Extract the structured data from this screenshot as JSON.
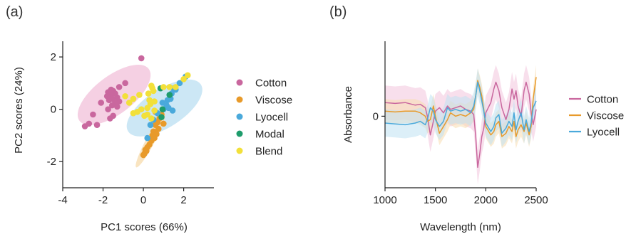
{
  "panels": {
    "a": "(a)",
    "b": "(b)"
  },
  "chart_data": [
    {
      "type": "scatter",
      "xlabel": "PC1 scores (66%)",
      "ylabel": "PC2 scores (24%)",
      "xlim": [
        -4,
        3.5
      ],
      "ylim": [
        -3,
        2.6
      ],
      "xticks": [
        "-4",
        "-2",
        "0",
        "2"
      ],
      "yticks": [
        "-2",
        "0",
        "2"
      ],
      "legend_position": "right",
      "series": [
        {
          "name": "Cotton",
          "color": "#c9679e",
          "points": [
            [
              -0.1,
              1.95
            ],
            [
              -0.9,
              1.0
            ],
            [
              -1.2,
              0.85
            ],
            [
              -1.6,
              0.75
            ],
            [
              -1.5,
              0.7
            ],
            [
              -1.75,
              0.65
            ],
            [
              -1.4,
              0.6
            ],
            [
              -1.6,
              0.55
            ],
            [
              -1.8,
              0.5
            ],
            [
              -1.3,
              0.45
            ],
            [
              -1.55,
              0.4
            ],
            [
              -1.7,
              0.35
            ],
            [
              -1.2,
              0.3
            ],
            [
              -1.4,
              0.25
            ],
            [
              -2.1,
              0.25
            ],
            [
              -1.55,
              0.15
            ],
            [
              -1.3,
              0.1
            ],
            [
              -1.75,
              0.0
            ],
            [
              -2.5,
              -0.2
            ],
            [
              -1.5,
              -0.25
            ],
            [
              -1.65,
              -0.35
            ],
            [
              -2.7,
              -0.55
            ],
            [
              -2.3,
              -0.6
            ],
            [
              -2.9,
              -0.65
            ]
          ]
        },
        {
          "name": "Viscose",
          "color": "#e89a2a",
          "points": [
            [
              0.6,
              -0.1
            ],
            [
              0.9,
              -0.2
            ],
            [
              0.8,
              -0.35
            ],
            [
              0.7,
              -0.5
            ],
            [
              1.0,
              -0.55
            ],
            [
              0.6,
              -0.6
            ],
            [
              0.75,
              -0.75
            ],
            [
              0.5,
              -0.85
            ],
            [
              0.65,
              -0.95
            ],
            [
              0.45,
              -1.0
            ],
            [
              0.55,
              -1.1
            ],
            [
              0.4,
              -1.2
            ],
            [
              0.3,
              -1.35
            ],
            [
              0.2,
              -1.45
            ],
            [
              0.1,
              -1.55
            ],
            [
              0.15,
              -1.6
            ],
            [
              0.05,
              -1.7
            ],
            [
              0.0,
              -1.75
            ]
          ]
        },
        {
          "name": "Lyocell",
          "color": "#4aa9db",
          "points": [
            [
              2.1,
              1.25
            ],
            [
              1.8,
              1.0
            ],
            [
              1.5,
              0.8
            ],
            [
              1.6,
              0.75
            ],
            [
              1.4,
              0.6
            ],
            [
              1.3,
              0.55
            ],
            [
              1.35,
              0.4
            ],
            [
              1.2,
              0.35
            ],
            [
              0.95,
              0.25
            ],
            [
              1.15,
              0.15
            ],
            [
              1.25,
              0.05
            ],
            [
              1.45,
              -0.05
            ],
            [
              1.0,
              0.0
            ],
            [
              0.7,
              -0.15
            ],
            [
              0.5,
              -0.4
            ],
            [
              0.35,
              -0.6
            ],
            [
              0.2,
              -1.1
            ]
          ]
        },
        {
          "name": "Modal",
          "color": "#1e9c6c",
          "points": [
            [
              0.85,
              0.8
            ],
            [
              1.3,
              0.55
            ],
            [
              0.95,
              0.0
            ],
            [
              0.9,
              -0.3
            ]
          ]
        },
        {
          "name": "Blend",
          "color": "#f2e03a",
          "points": [
            [
              2.2,
              1.3
            ],
            [
              2.0,
              1.15
            ],
            [
              1.6,
              0.85
            ],
            [
              1.3,
              0.85
            ],
            [
              1.0,
              0.85
            ],
            [
              0.4,
              0.9
            ],
            [
              0.45,
              0.8
            ],
            [
              0.5,
              0.7
            ],
            [
              0.25,
              0.6
            ],
            [
              -0.2,
              0.55
            ],
            [
              -0.9,
              0.5
            ],
            [
              -0.5,
              0.4
            ],
            [
              0.3,
              0.35
            ],
            [
              0.55,
              0.3
            ],
            [
              -0.7,
              0.25
            ],
            [
              0.35,
              0.2
            ],
            [
              0.2,
              0.05
            ],
            [
              -0.1,
              0.0
            ],
            [
              0.55,
              -0.05
            ],
            [
              -0.3,
              -0.1
            ],
            [
              -0.5,
              -0.15
            ],
            [
              0.2,
              -0.2
            ],
            [
              0.05,
              -0.25
            ],
            [
              0.4,
              -0.35
            ]
          ]
        }
      ],
      "ellipses": [
        {
          "series": "Cotton",
          "color": "#f2c4dc",
          "center": [
            -1.45,
            0.55
          ],
          "radii": [
            0.95,
            2.15
          ],
          "angle": -53
        },
        {
          "series": "Lyocell",
          "color": "#bfe1f3",
          "center": [
            1.05,
            0.05
          ],
          "radii": [
            0.95,
            2.15
          ],
          "angle": -57
        },
        {
          "series": "Viscose",
          "color": "#f8ddb0",
          "center": [
            0.35,
            -1.2
          ],
          "radii": [
            0.22,
            1.5
          ],
          "angle": -28
        }
      ]
    },
    {
      "type": "line",
      "xlabel": "Wavelength (nm)",
      "ylabel": "Absorbance",
      "xlim": [
        1000,
        2500
      ],
      "ylim": [
        -4.2,
        4.4
      ],
      "xticks": [
        "1000",
        "1500",
        "2000",
        "2500"
      ],
      "yticks": [
        "0"
      ],
      "legend_position": "right",
      "series": [
        {
          "name": "Cotton",
          "color": "#c9679e",
          "band_color": "#f2c4dc",
          "band": 1.0,
          "x": [
            1000,
            1100,
            1200,
            1300,
            1350,
            1400,
            1420,
            1450,
            1480,
            1500,
            1540,
            1580,
            1620,
            1650,
            1700,
            1750,
            1800,
            1850,
            1880,
            1900,
            1920,
            1940,
            1960,
            1980,
            2000,
            2050,
            2080,
            2100,
            2130,
            2160,
            2200,
            2230,
            2260,
            2280,
            2300,
            2320,
            2350,
            2380,
            2400,
            2430,
            2450,
            2470,
            2500
          ],
          "y": [
            0.8,
            0.75,
            0.8,
            0.65,
            0.7,
            0.5,
            0.0,
            -1.1,
            -0.3,
            0.3,
            0.5,
            0.2,
            0.6,
            0.4,
            0.5,
            0.6,
            0.4,
            0.3,
            0.1,
            -1.2,
            -3.0,
            -2.2,
            -1.2,
            -0.7,
            0.2,
            0.8,
            1.6,
            2.0,
            1.5,
            0.5,
            -0.2,
            0.4,
            1.6,
            1.0,
            1.5,
            0.6,
            0.0,
            1.5,
            2.0,
            1.3,
            0.2,
            -0.5,
            0.4
          ]
        },
        {
          "name": "Viscose",
          "color": "#e89a2a",
          "band_color": "#f8ddb0",
          "band": 0.7,
          "x": [
            1000,
            1100,
            1200,
            1300,
            1350,
            1400,
            1420,
            1450,
            1480,
            1500,
            1540,
            1580,
            1620,
            1650,
            1700,
            1750,
            1800,
            1850,
            1880,
            1900,
            1920,
            1940,
            1960,
            1980,
            2000,
            2050,
            2080,
            2100,
            2130,
            2160,
            2200,
            2230,
            2260,
            2280,
            2300,
            2320,
            2350,
            2380,
            2400,
            2430,
            2450,
            2470,
            2500
          ],
          "y": [
            0.3,
            0.25,
            0.3,
            0.3,
            0.2,
            0.0,
            -0.3,
            -0.2,
            0.6,
            0.0,
            -1.0,
            -0.6,
            -0.2,
            0.2,
            0.0,
            0.1,
            0.0,
            0.2,
            0.4,
            1.2,
            2.1,
            1.7,
            1.2,
            0.4,
            -0.6,
            -1.1,
            -0.9,
            -0.5,
            -0.3,
            -1.2,
            -1.0,
            -0.6,
            -0.9,
            -0.3,
            -1.2,
            -0.8,
            -0.5,
            -0.9,
            -0.4,
            -1.1,
            -0.6,
            1.0,
            2.3
          ]
        },
        {
          "name": "Lyocell",
          "color": "#4aa9db",
          "band_color": "#bfe1f3",
          "band": 0.8,
          "x": [
            1000,
            1100,
            1200,
            1300,
            1350,
            1400,
            1420,
            1450,
            1480,
            1500,
            1540,
            1580,
            1620,
            1650,
            1700,
            1750,
            1800,
            1850,
            1880,
            1900,
            1920,
            1940,
            1960,
            1980,
            2000,
            2050,
            2080,
            2100,
            2130,
            2160,
            2200,
            2230,
            2260,
            2280,
            2300,
            2320,
            2350,
            2380,
            2400,
            2430,
            2450,
            2470,
            2500
          ],
          "y": [
            -0.4,
            -0.45,
            -0.5,
            -0.4,
            -0.3,
            -0.5,
            -0.2,
            0.5,
            0.3,
            -0.2,
            -0.6,
            -0.3,
            0.5,
            0.3,
            0.4,
            0.3,
            0.4,
            0.2,
            0.6,
            1.2,
            2.0,
            1.5,
            0.9,
            0.3,
            -0.4,
            -0.9,
            -0.6,
            -0.1,
            0.1,
            -1.0,
            -0.7,
            -0.3,
            -0.6,
            0.2,
            -0.8,
            -0.3,
            0.2,
            -0.8,
            -0.2,
            -0.9,
            -0.4,
            0.5,
            0.9
          ]
        }
      ]
    }
  ]
}
